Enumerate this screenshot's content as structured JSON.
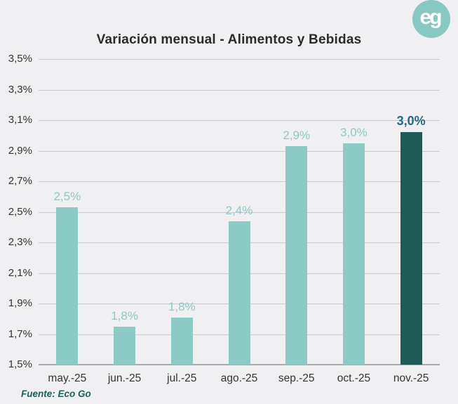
{
  "chart_data": {
    "type": "bar",
    "title": "Variación mensual - Alimentos y Bebidas",
    "categories": [
      "may.-25",
      "jun.-25",
      "jul.-25",
      "ago.-25",
      "sep.-25",
      "oct.-25",
      "nov.-25"
    ],
    "values": [
      2.53,
      1.75,
      1.81,
      2.44,
      2.93,
      2.95,
      3.02
    ],
    "value_labels": [
      "2,5%",
      "1,8%",
      "1,8%",
      "2,4%",
      "2,9%",
      "3,0%",
      "3,0%"
    ],
    "highlight_index": 6,
    "ylim": [
      1.5,
      3.5
    ],
    "ytick_step": 0.2,
    "ytick_labels": [
      "3,5%",
      "3,3%",
      "3,1%",
      "2,9%",
      "2,7%",
      "2,5%",
      "2,3%",
      "2,1%",
      "1,9%",
      "1,7%",
      "1,5%"
    ],
    "grid": true,
    "legend": null,
    "source": "Fuente: Eco Go"
  },
  "logo": {
    "text": "eg"
  },
  "colors": {
    "background": "#f0eff1",
    "bar": "#8ccac5",
    "bar_highlight": "#1e5b56",
    "label": "#8fc7c2",
    "label_highlight": "#266a80",
    "grid": "#c9c8cb",
    "axis_line": "#aaa9ac",
    "axis_text": "#343434",
    "title": "#2b2b2b",
    "source": "#1f5f58",
    "logo_bg": "#87c8c3",
    "logo_text": "#ffffff"
  }
}
